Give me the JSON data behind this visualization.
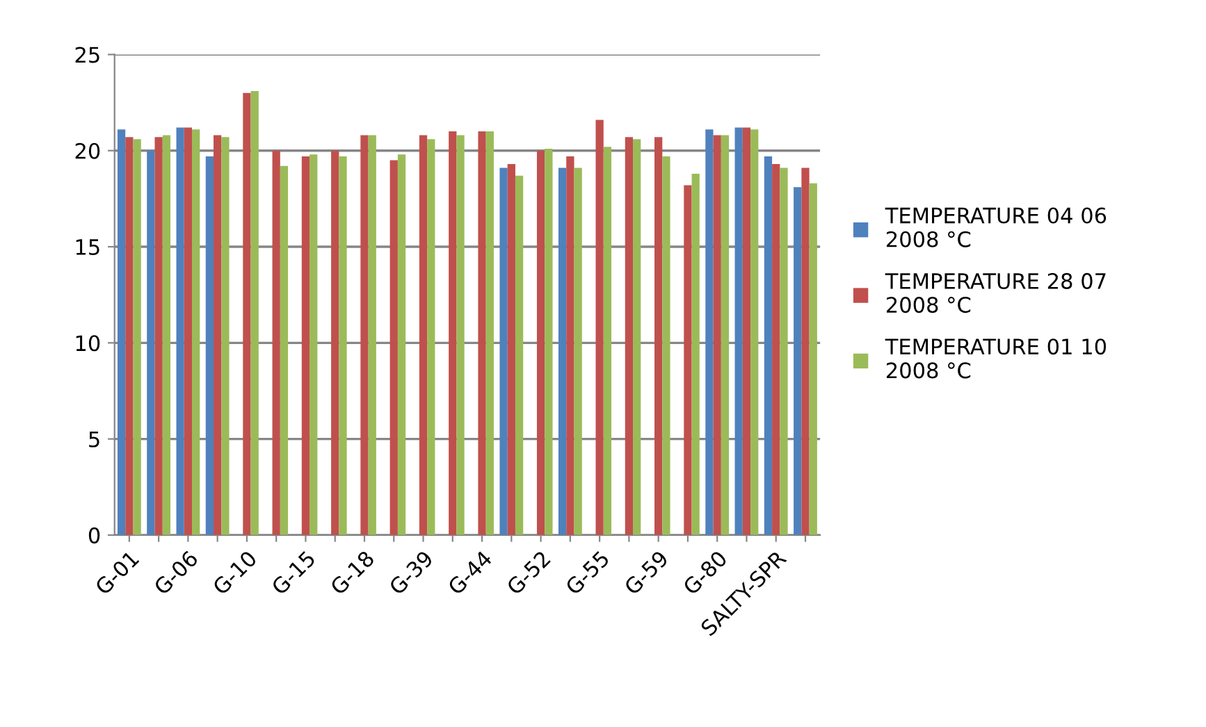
{
  "chart_data": {
    "type": "bar",
    "categories": [
      "G-01",
      null,
      "G-06",
      null,
      "G-10",
      null,
      "G-15",
      null,
      "G-18",
      null,
      "G-39",
      null,
      "G-44",
      null,
      "G-52",
      null,
      "G-55",
      null,
      "G-59",
      null,
      "G-80",
      null,
      "SALTY-SPR",
      null
    ],
    "series": [
      {
        "name": "TEMPERATURE 04 06 2008 °C",
        "color": "#4f81bd",
        "values": [
          21.1,
          20.0,
          21.2,
          19.7,
          null,
          null,
          null,
          null,
          null,
          null,
          null,
          null,
          null,
          19.1,
          null,
          19.1,
          null,
          null,
          null,
          null,
          21.1,
          21.2,
          19.7,
          18.1
        ]
      },
      {
        "name": "TEMPERATURE 28 07 2008 °C",
        "color": "#c0504d",
        "values": [
          20.7,
          20.7,
          21.2,
          20.8,
          23.0,
          20.0,
          19.7,
          20.0,
          20.8,
          19.5,
          20.8,
          21.0,
          21.0,
          19.3,
          20.0,
          19.7,
          21.6,
          20.7,
          20.7,
          18.2,
          20.8,
          21.2,
          19.3,
          19.1
        ]
      },
      {
        "name": "TEMPERATURE 01 10 2008 °C",
        "color": "#9bbb59",
        "values": [
          20.6,
          20.8,
          21.1,
          20.7,
          23.1,
          19.2,
          19.8,
          19.7,
          20.8,
          19.8,
          20.6,
          20.8,
          21.0,
          18.7,
          20.1,
          19.1,
          20.2,
          20.6,
          19.7,
          18.8,
          20.8,
          21.1,
          19.1,
          18.3
        ]
      }
    ],
    "ylim": [
      0,
      25
    ],
    "yticks": [
      0,
      5,
      10,
      15,
      20,
      25
    ],
    "grid": "y",
    "legend": "right"
  }
}
